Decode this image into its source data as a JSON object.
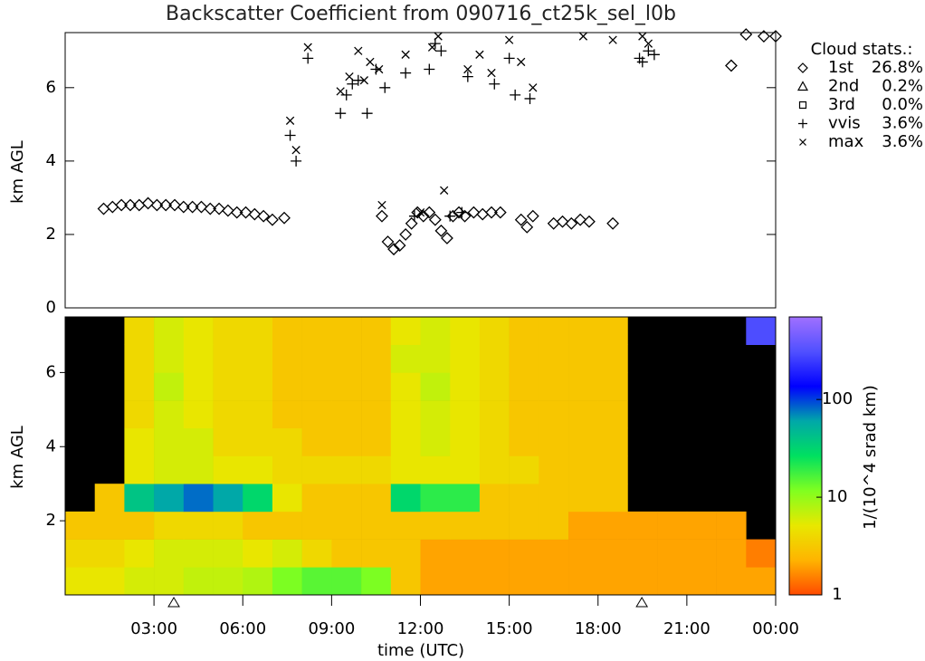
{
  "chart_data": [
    {
      "type": "scatter",
      "title": "Backscatter Coefficient from 090716_ct25k_sel_l0b",
      "ylabel": "km AGL",
      "xlim": [
        0,
        24
      ],
      "ylim": [
        0,
        7.5
      ],
      "yticks": [
        0,
        2,
        4,
        6
      ],
      "legend_title": "Cloud stats.:",
      "legend": "right",
      "series": [
        {
          "name": "1st",
          "stat": "26.8%",
          "marker": "diamond",
          "color": "#000000",
          "x": [
            1.3,
            1.6,
            1.9,
            2.2,
            2.5,
            2.8,
            3.1,
            3.4,
            3.7,
            4.0,
            4.3,
            4.6,
            4.9,
            5.2,
            5.5,
            5.8,
            6.1,
            6.4,
            6.7,
            7.0,
            7.4,
            10.7,
            10.9,
            11.1,
            11.3,
            11.5,
            11.7,
            11.9,
            12.1,
            12.3,
            12.5,
            12.7,
            12.9,
            13.1,
            13.3,
            13.5,
            13.8,
            14.1,
            14.4,
            14.7,
            15.4,
            15.6,
            15.8,
            16.5,
            16.8,
            17.1,
            17.4,
            17.7,
            18.5,
            22.5,
            23.0,
            23.6,
            24.0
          ],
          "values": [
            2.7,
            2.75,
            2.8,
            2.8,
            2.8,
            2.85,
            2.8,
            2.8,
            2.8,
            2.75,
            2.75,
            2.75,
            2.7,
            2.7,
            2.65,
            2.6,
            2.6,
            2.55,
            2.5,
            2.4,
            2.45,
            2.5,
            1.8,
            1.6,
            1.7,
            2.0,
            2.3,
            2.6,
            2.5,
            2.6,
            2.4,
            2.1,
            1.9,
            2.5,
            2.6,
            2.5,
            2.6,
            2.55,
            2.6,
            2.6,
            2.4,
            2.2,
            2.5,
            2.3,
            2.35,
            2.3,
            2.4,
            2.35,
            2.3,
            6.6,
            7.45,
            7.4,
            7.4
          ]
        },
        {
          "name": "2nd",
          "stat": "0.2%",
          "marker": "triangle",
          "color": "#000000",
          "x": [],
          "values": []
        },
        {
          "name": "3rd",
          "stat": "0.0%",
          "marker": "square",
          "color": "#000000",
          "x": [],
          "values": []
        },
        {
          "name": "vvis",
          "stat": "3.6%",
          "marker": "plus",
          "color": "#000000",
          "x": [
            7.6,
            7.8,
            8.2,
            9.3,
            9.5,
            9.7,
            9.9,
            10.2,
            10.5,
            10.8,
            11.5,
            11.8,
            12.3,
            12.5,
            12.7,
            13.0,
            13.4,
            13.6,
            14.5,
            15.0,
            15.2,
            15.7,
            19.4,
            19.5,
            19.7,
            19.9
          ],
          "values": [
            4.7,
            4.0,
            6.8,
            5.3,
            5.8,
            6.1,
            6.2,
            5.3,
            6.5,
            6.0,
            6.4,
            2.5,
            6.5,
            7.2,
            7.0,
            2.5,
            2.6,
            6.3,
            6.1,
            6.8,
            5.8,
            5.7,
            6.8,
            6.7,
            7.0,
            6.9
          ]
        },
        {
          "name": "max",
          "stat": "3.6%",
          "marker": "cross",
          "color": "#000000",
          "x": [
            7.6,
            7.8,
            8.2,
            9.3,
            9.6,
            9.9,
            10.1,
            10.3,
            10.6,
            10.7,
            11.5,
            12.0,
            12.4,
            12.6,
            12.8,
            13.6,
            14.0,
            14.4,
            15.0,
            15.4,
            15.8,
            17.5,
            18.5,
            19.5,
            19.7
          ],
          "values": [
            5.1,
            4.3,
            7.1,
            5.9,
            6.3,
            7.0,
            6.2,
            6.7,
            6.5,
            2.8,
            6.9,
            2.6,
            7.1,
            7.4,
            3.2,
            6.5,
            6.9,
            6.4,
            7.3,
            6.7,
            6.0,
            7.4,
            7.3,
            7.4,
            7.2
          ]
        }
      ]
    },
    {
      "type": "heatmap",
      "ylabel": "km AGL",
      "xlabel": "time (UTC)",
      "xlim": [
        0,
        24
      ],
      "ylim": [
        0,
        7.5
      ],
      "yticks": [
        2,
        4,
        6
      ],
      "xticks": [
        {
          "value": 3,
          "label": "03:00"
        },
        {
          "value": 6,
          "label": "06:00"
        },
        {
          "value": 9,
          "label": "09:00"
        },
        {
          "value": 12,
          "label": "12:00"
        },
        {
          "value": 15,
          "label": "15:00"
        },
        {
          "value": 18,
          "label": "18:00"
        },
        {
          "value": 21,
          "label": "21:00"
        },
        {
          "value": 24,
          "label": "00:00"
        }
      ],
      "x_edges": [
        0,
        1,
        2,
        3,
        4,
        5,
        6,
        7,
        8,
        9,
        10,
        11,
        12,
        13,
        14,
        15,
        16,
        17,
        18,
        19,
        20,
        21,
        22,
        23,
        24
      ],
      "y_edges": [
        0,
        0.75,
        1.5,
        2.25,
        3.0,
        3.75,
        4.5,
        5.25,
        6.0,
        6.75,
        7.5
      ],
      "z": [
        [
          5,
          5,
          6,
          6,
          7,
          7,
          8,
          12,
          15,
          15,
          12,
          3,
          2,
          2,
          2,
          2,
          2,
          2,
          2,
          2,
          2,
          2,
          2,
          2
        ],
        [
          4,
          4,
          5,
          6,
          6,
          6,
          5,
          6,
          4,
          3,
          3,
          3,
          2,
          2,
          2,
          2,
          2,
          2,
          2,
          2,
          2,
          2,
          2,
          1.5
        ],
        [
          3,
          3,
          3,
          4,
          4,
          4,
          3,
          3,
          3,
          3,
          3,
          3,
          3,
          3,
          3,
          3,
          3,
          2,
          2,
          2,
          2,
          2,
          2,
          null
        ],
        [
          null,
          3,
          40,
          60,
          80,
          60,
          30,
          5,
          3,
          3,
          3,
          30,
          20,
          20,
          3,
          3,
          3,
          3,
          3,
          null,
          null,
          null,
          null,
          null
        ],
        [
          null,
          null,
          5,
          6,
          6,
          5,
          5,
          4,
          4,
          4,
          4,
          5,
          5,
          5,
          4,
          4,
          3,
          3,
          3,
          null,
          null,
          null,
          null,
          null
        ],
        [
          null,
          null,
          5,
          6,
          6,
          4,
          4,
          4,
          3,
          3,
          3,
          5,
          6,
          5,
          4,
          3,
          3,
          3,
          3,
          null,
          null,
          null,
          null,
          null
        ],
        [
          null,
          null,
          4,
          6,
          5,
          4,
          4,
          3,
          3,
          3,
          3,
          5,
          6,
          5,
          4,
          3,
          3,
          3,
          3,
          null,
          null,
          null,
          null,
          null
        ],
        [
          null,
          null,
          4,
          7,
          5,
          4,
          4,
          3,
          3,
          3,
          3,
          5,
          7,
          5,
          4,
          3,
          3,
          3,
          3,
          null,
          null,
          null,
          null,
          null
        ],
        [
          null,
          null,
          4,
          6,
          5,
          4,
          4,
          3,
          3,
          3,
          3,
          6,
          6,
          5,
          4,
          3,
          3,
          3,
          3,
          null,
          null,
          null,
          null,
          null
        ],
        [
          null,
          null,
          4,
          6,
          5,
          4,
          4,
          3,
          3,
          3,
          3,
          5,
          6,
          5,
          4,
          3,
          3,
          3,
          3,
          null,
          null,
          null,
          null,
          300
        ]
      ],
      "no_data_color": "#000000",
      "event_x": [
        3.67,
        19.48
      ],
      "colorbar": {
        "label": "1/(10^4 srad km)",
        "lim": [
          1,
          700
        ],
        "ticks": [
          1,
          10,
          100
        ],
        "log": true,
        "colormap": [
          "#ff4a00",
          "#ffb400",
          "#e8e800",
          "#80ff20",
          "#00e060",
          "#00a8a8",
          "#0000ff",
          "#5050ff",
          "#a070ff"
        ]
      }
    }
  ]
}
